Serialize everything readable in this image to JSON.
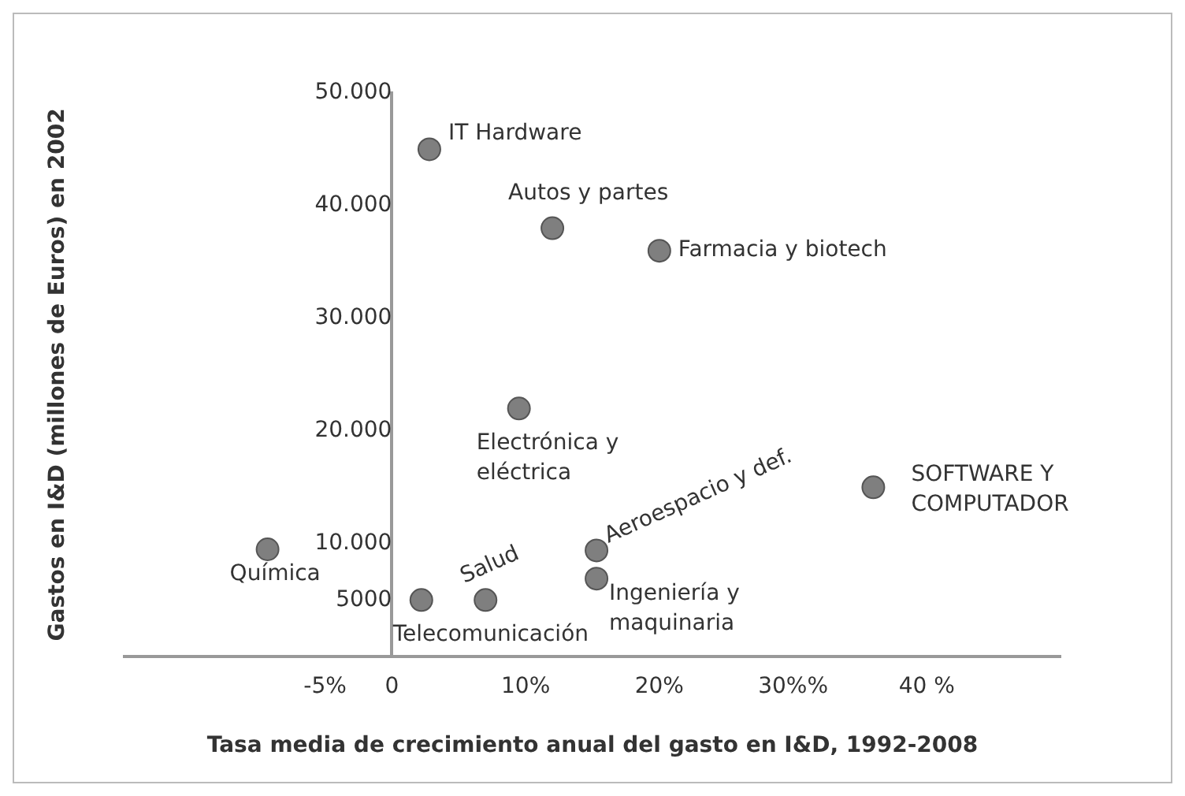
{
  "chart_data": {
    "type": "scatter",
    "xlabel": "Tasa media de crecimiento anual del gasto en I&D, 1992-2008",
    "ylabel": "Gastos en I&D (millones de Euros) en 2002",
    "x": [
      2.8,
      12,
      20,
      9.5,
      36,
      15.3,
      15.3,
      7,
      2.2,
      -9.3
    ],
    "series": [
      {
        "color": "#7f7f7f",
        "values": [
          45000,
          38000,
          36000,
          22000,
          15000,
          9400,
          6900,
          5000,
          5000,
          9500
        ]
      }
    ],
    "xlim": [
      -20,
      50
    ],
    "xticks": [
      {
        "value": -5,
        "label": "-5%"
      },
      0,
      {
        "value": 10,
        "label": "10%"
      },
      {
        "value": 20,
        "label": "20%"
      },
      {
        "value": 30,
        "label": "30%%"
      },
      {
        "value": 40,
        "label": "40 %"
      }
    ],
    "ylim": [
      0,
      50000
    ],
    "yticks": [
      {
        "value": 5000,
        "label": "5000"
      },
      {
        "value": 10000,
        "label": "10.000"
      },
      {
        "value": 20000,
        "label": "20.000"
      },
      {
        "value": 30000,
        "label": "30.000"
      },
      {
        "value": 40000,
        "label": "40.000"
      },
      {
        "value": 50000,
        "label": "50.000"
      }
    ],
    "grid": false,
    "legend": false,
    "marker": "circle",
    "annotations": [
      {
        "text": "IT Hardware",
        "x": 2.8,
        "y": 45000
      },
      {
        "text": "Autos y partes",
        "x": 12,
        "y": 38000
      },
      {
        "text": "Farmacia y biotech",
        "x": 20,
        "y": 36000
      },
      {
        "text": "Electrónica y eléctrica",
        "x": 9.5,
        "y": 22000
      },
      {
        "text": "SOFTWARE Y COMPUTADOR",
        "x": 36,
        "y": 15000
      },
      {
        "text": "Aeroespacio y def.",
        "x": 15.3,
        "y": 9400
      },
      {
        "text": "Ingeniería y maquinaria",
        "x": 15.3,
        "y": 6900
      },
      {
        "text": "Salud",
        "x": 7,
        "y": 5000
      },
      {
        "text": "Telecomunicación",
        "x": 2.2,
        "y": 5000
      },
      {
        "text": "Química",
        "x": -9.3,
        "y": 9500
      }
    ]
  }
}
